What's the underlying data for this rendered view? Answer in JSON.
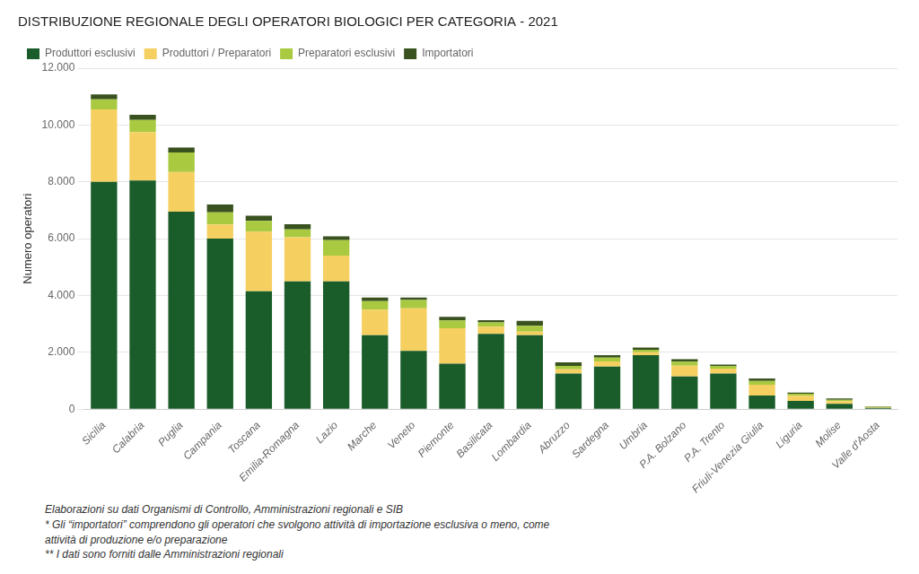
{
  "chart_data": {
    "type": "bar",
    "title": "DISTRIBUZIONE REGIONALE DEGLI OPERATORI BIOLOGICI PER CATEGORIA - 2021",
    "ylabel": "Numero operatori",
    "categories": [
      "Sicilia",
      "Calabria",
      "Puglia",
      "Campania",
      "Toscana",
      "Emilia-Romagna",
      "Lazio",
      "Marche",
      "Veneto",
      "Piemonte",
      "Basilicata",
      "Lombardia",
      "Abruzzo",
      "Sardegna",
      "Umbria",
      "P.A. Bolzano",
      "P.A. Trento",
      "Friuli-Venezia Giulia",
      "Liguria",
      "Molise",
      "Valle d'Aosta"
    ],
    "series": [
      {
        "name": "Produttori esclusivi",
        "color": "#1a5c2a",
        "values": [
          8000,
          8050,
          6950,
          6000,
          4150,
          4500,
          4500,
          2600,
          2050,
          1600,
          2650,
          2600,
          1250,
          1500,
          1900,
          1150,
          1250,
          480,
          290,
          190,
          45
        ]
      },
      {
        "name": "Produttori / Preparatori",
        "color": "#f5d060",
        "values": [
          2550,
          1700,
          1400,
          500,
          2100,
          1550,
          900,
          900,
          1500,
          1250,
          250,
          130,
          150,
          180,
          100,
          380,
          180,
          380,
          180,
          90,
          25
        ]
      },
      {
        "name": "Preparatori esclusivi",
        "color": "#a8c940",
        "values": [
          350,
          430,
          680,
          430,
          380,
          280,
          550,
          300,
          290,
          270,
          150,
          200,
          120,
          130,
          90,
          140,
          90,
          130,
          70,
          50,
          15
        ]
      },
      {
        "name": "Importatori",
        "color": "#3a5220",
        "values": [
          180,
          180,
          180,
          270,
          180,
          180,
          130,
          130,
          90,
          130,
          80,
          180,
          130,
          90,
          80,
          90,
          45,
          90,
          45,
          45,
          15
        ]
      }
    ],
    "stacked": true,
    "ylim": [
      0,
      12000
    ],
    "yticks": [
      0,
      {
        "value": 2000,
        "label": "2.000"
      },
      {
        "value": 4000,
        "label": "4.000"
      },
      {
        "value": 6000,
        "label": "6.000"
      },
      {
        "value": 8000,
        "label": "8.000"
      },
      {
        "value": 10000,
        "label": "10.000"
      },
      {
        "value": 12000,
        "label": "12.000"
      }
    ],
    "grid": true,
    "legend": "top",
    "annotations": [
      "Elaborazioni su dati Organismi di Controllo, Amministrazioni regionali e SIB",
      "* Gli “importatori” comprendono gli operatori che svolgono attività di importazione esclusiva o meno, come",
      "attività di produzione e/o preparazione",
      "** I dati sono forniti dalle Amministrazioni regionali"
    ]
  }
}
